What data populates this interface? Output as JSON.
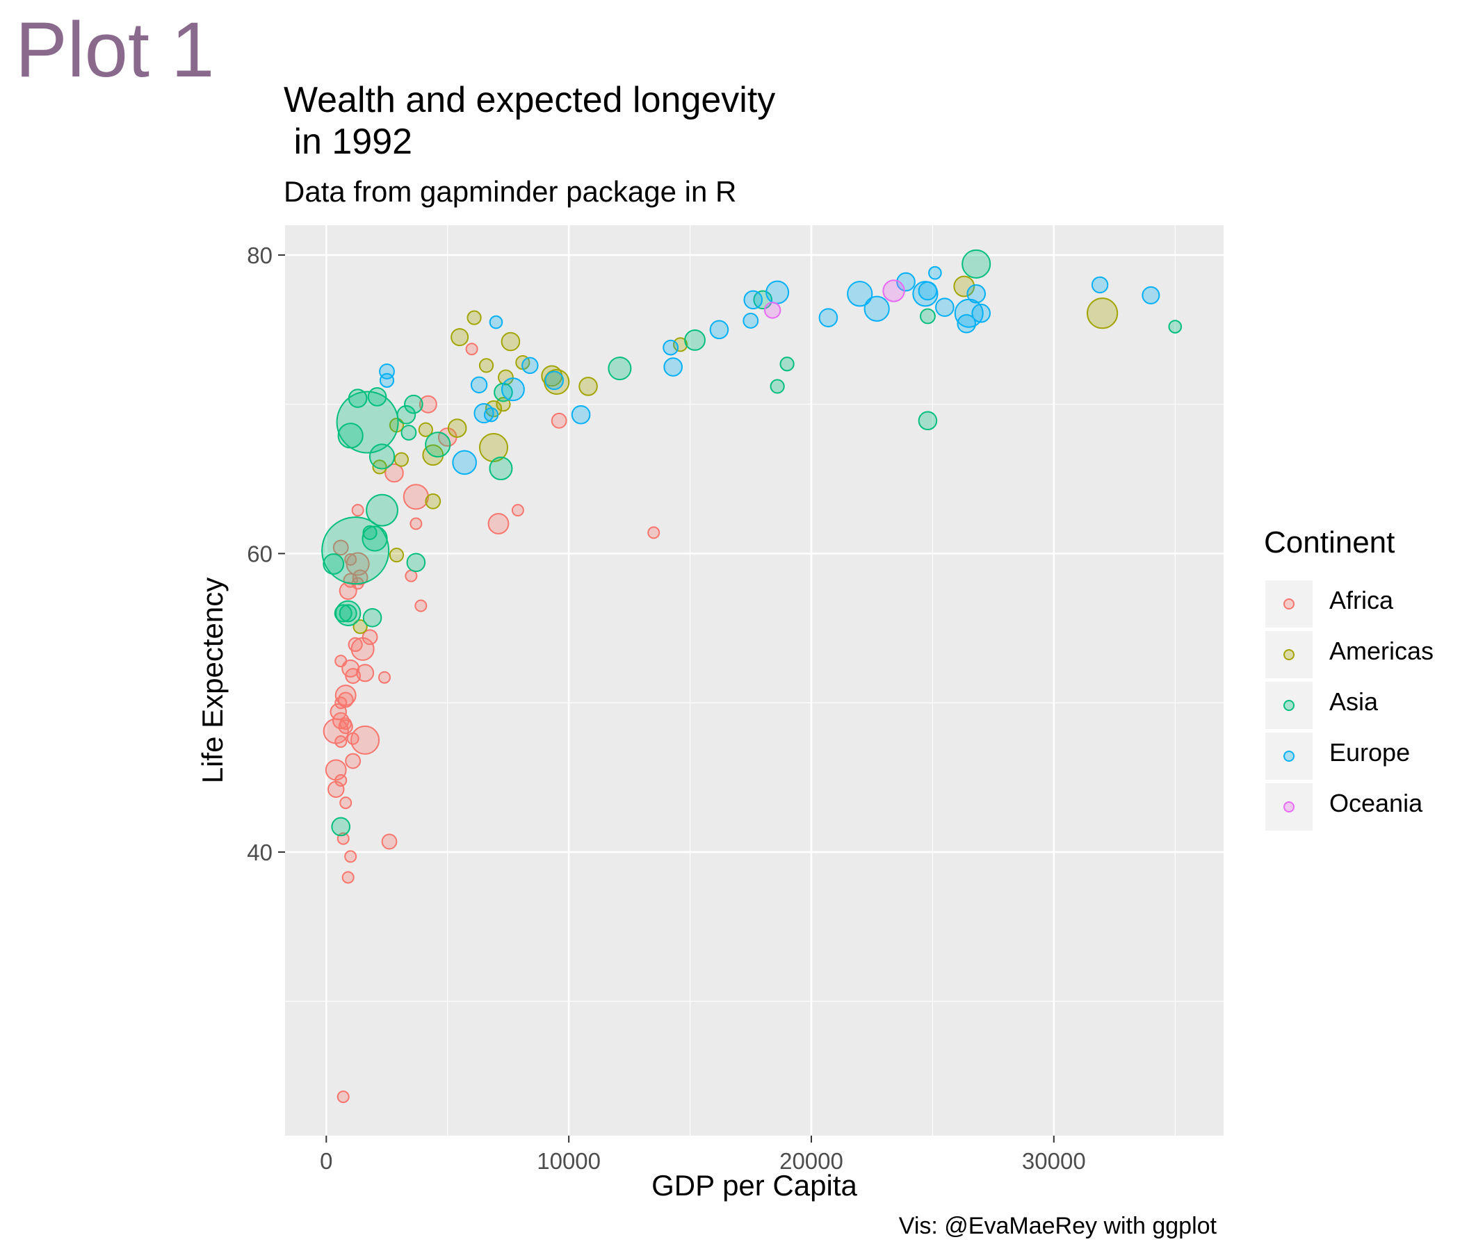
{
  "header": {
    "plot_label": "Plot 1"
  },
  "chart_data": {
    "type": "scatter",
    "title": "Wealth and expected longevity\n in 1992",
    "subtitle": "Data from gapminder package in R",
    "xlabel": "GDP per Capita",
    "ylabel": "Life Expectency",
    "caption": "Vis: @EvaMaeRey with ggplot",
    "xlim": [
      -1700,
      37000
    ],
    "ylim": [
      21,
      82
    ],
    "x_ticks": [
      0,
      10000,
      20000,
      30000
    ],
    "x_tick_labels": [
      "0",
      "10000",
      "20000",
      "30000"
    ],
    "y_ticks": [
      40,
      60,
      80
    ],
    "y_tick_labels": [
      "40",
      "60",
      "80"
    ],
    "grid": true,
    "legend": {
      "title": "Continent",
      "position": "right",
      "entries": [
        {
          "name": "Africa",
          "color": "#F8766D"
        },
        {
          "name": "Americas",
          "color": "#A3A500"
        },
        {
          "name": "Asia",
          "color": "#00BF7D"
        },
        {
          "name": "Europe",
          "color": "#00B0F6"
        },
        {
          "name": "Oceania",
          "color": "#E76BF3"
        }
      ]
    },
    "panel_background": "#EBEBEB",
    "point_fill_alpha": 0.3,
    "series": [
      {
        "name": "Africa",
        "points": [
          [
            700,
            23.6,
            1
          ],
          [
            900,
            38.3,
            1
          ],
          [
            1000,
            39.7,
            1
          ],
          [
            2600,
            40.7,
            1.3
          ],
          [
            700,
            40.9,
            1
          ],
          [
            800,
            43.3,
            1
          ],
          [
            400,
            44.2,
            1.4
          ],
          [
            600,
            44.8,
            1
          ],
          [
            400,
            45.5,
            1.8
          ],
          [
            1100,
            46.1,
            1.3
          ],
          [
            1600,
            47.5,
            2.5
          ],
          [
            1100,
            47.6,
            1
          ],
          [
            600,
            47.4,
            1
          ],
          [
            400,
            48.1,
            2.2
          ],
          [
            800,
            48.4,
            1.2
          ],
          [
            600,
            48.8,
            1.4
          ],
          [
            800,
            48.6,
            1
          ],
          [
            500,
            49.4,
            1.4
          ],
          [
            800,
            50.2,
            1.3
          ],
          [
            800,
            50.5,
            1.8
          ],
          [
            600,
            50.0,
            1
          ],
          [
            1100,
            51.8,
            1.3
          ],
          [
            1600,
            52.0,
            1.5
          ],
          [
            2400,
            51.7,
            1
          ],
          [
            1000,
            52.3,
            1.5
          ],
          [
            600,
            52.8,
            1
          ],
          [
            1500,
            53.6,
            2
          ],
          [
            1200,
            53.9,
            1.2
          ],
          [
            1800,
            54.4,
            1.3
          ],
          [
            3900,
            56.5,
            1
          ],
          [
            900,
            57.5,
            1.5
          ],
          [
            1300,
            58.0,
            1
          ],
          [
            1400,
            58.4,
            1.3
          ],
          [
            1000,
            58.2,
            1.2
          ],
          [
            3500,
            58.5,
            1
          ],
          [
            1300,
            59.3,
            2
          ],
          [
            1000,
            59.6,
            1
          ],
          [
            600,
            60.4,
            1.3
          ],
          [
            3700,
            62.0,
            1
          ],
          [
            7100,
            62.0,
            1.8
          ],
          [
            1300,
            62.9,
            1
          ],
          [
            7900,
            62.9,
            1
          ],
          [
            13500,
            61.4,
            1
          ],
          [
            3700,
            63.8,
            2.2
          ],
          [
            2800,
            65.4,
            1.6
          ],
          [
            5000,
            67.8,
            1.6
          ],
          [
            9600,
            68.9,
            1.3
          ],
          [
            4200,
            70.0,
            1.5
          ],
          [
            6000,
            73.7,
            1
          ]
        ]
      },
      {
        "name": "Americas",
        "points": [
          [
            1400,
            55.1,
            1.2
          ],
          [
            2900,
            59.9,
            1.2
          ],
          [
            2200,
            65.8,
            1.2
          ],
          [
            3100,
            66.3,
            1.2
          ],
          [
            4400,
            66.6,
            1.8
          ],
          [
            4400,
            63.5,
            1.3
          ],
          [
            2900,
            68.6,
            1.2
          ],
          [
            4100,
            68.3,
            1.2
          ],
          [
            5400,
            68.4,
            1.6
          ],
          [
            6900,
            67.1,
            2.5
          ],
          [
            6900,
            69.7,
            1.4
          ],
          [
            7300,
            70.0,
            1.2
          ],
          [
            6100,
            75.8,
            1.2
          ],
          [
            5500,
            74.5,
            1.5
          ],
          [
            7600,
            74.2,
            1.6
          ],
          [
            6600,
            72.6,
            1.2
          ],
          [
            8100,
            72.8,
            1.2
          ],
          [
            7400,
            71.8,
            1.3
          ],
          [
            9300,
            71.9,
            1.8
          ],
          [
            9500,
            71.5,
            2.2
          ],
          [
            10800,
            71.2,
            1.6
          ],
          [
            14600,
            74.0,
            1.2
          ],
          [
            26300,
            77.9,
            1.8
          ],
          [
            32000,
            76.1,
            2.7
          ]
        ]
      },
      {
        "name": "Asia",
        "points": [
          [
            1200,
            60.2,
            6
          ],
          [
            1700,
            68.8,
            5.5
          ],
          [
            900,
            56.0,
            2.2
          ],
          [
            700,
            56.0,
            1.5
          ],
          [
            900,
            56.0,
            1.5
          ],
          [
            1900,
            55.7,
            1.6
          ],
          [
            300,
            59.3,
            1.8
          ],
          [
            2000,
            61.0,
            2.2
          ],
          [
            1800,
            61.4,
            1.2
          ],
          [
            2300,
            62.9,
            2.8
          ],
          [
            3700,
            59.4,
            1.6
          ],
          [
            600,
            41.7,
            1.6
          ],
          [
            2300,
            66.5,
            2.2
          ],
          [
            1000,
            67.9,
            2.2
          ],
          [
            3300,
            69.3,
            1.6
          ],
          [
            3600,
            70.0,
            1.6
          ],
          [
            3400,
            68.1,
            1.3
          ],
          [
            1300,
            70.4,
            1.6
          ],
          [
            2100,
            70.5,
            1.6
          ],
          [
            4600,
            67.3,
            2.2
          ],
          [
            7200,
            65.7,
            2
          ],
          [
            7300,
            70.8,
            1.6
          ],
          [
            12100,
            72.4,
            2
          ],
          [
            15200,
            74.3,
            1.8
          ],
          [
            18000,
            77.0,
            1.6
          ],
          [
            18600,
            71.2,
            1.2
          ],
          [
            19000,
            72.7,
            1.2
          ],
          [
            24800,
            75.9,
            1.3
          ],
          [
            24800,
            68.9,
            1.6
          ],
          [
            26800,
            79.4,
            2.5
          ],
          [
            35000,
            75.2,
            1.1
          ]
        ]
      },
      {
        "name": "Europe",
        "points": [
          [
            2500,
            71.6,
            1.2
          ],
          [
            2500,
            72.2,
            1.3
          ],
          [
            6300,
            71.3,
            1.4
          ],
          [
            6500,
            69.4,
            1.7
          ],
          [
            6800,
            69.3,
            1.2
          ],
          [
            5700,
            66.1,
            2.1
          ],
          [
            7000,
            75.5,
            1.1
          ],
          [
            7700,
            71.0,
            2
          ],
          [
            8400,
            72.6,
            1.4
          ],
          [
            9400,
            71.6,
            1.6
          ],
          [
            10500,
            69.3,
            1.6
          ],
          [
            14300,
            72.5,
            1.6
          ],
          [
            14200,
            73.8,
            1.3
          ],
          [
            16200,
            75.0,
            1.6
          ],
          [
            17500,
            75.6,
            1.3
          ],
          [
            17600,
            77.0,
            1.6
          ],
          [
            18600,
            77.5,
            2
          ],
          [
            20700,
            75.8,
            1.6
          ],
          [
            22000,
            77.4,
            2.2
          ],
          [
            22700,
            76.4,
            2.2
          ],
          [
            23900,
            78.2,
            1.6
          ],
          [
            25100,
            78.8,
            1.1
          ],
          [
            24700,
            77.4,
            2.2
          ],
          [
            24800,
            77.6,
            1.6
          ],
          [
            25500,
            76.5,
            1.6
          ],
          [
            26400,
            75.4,
            1.6
          ],
          [
            26500,
            76.1,
            2.5
          ],
          [
            26800,
            77.4,
            1.6
          ],
          [
            27000,
            76.1,
            1.6
          ],
          [
            31900,
            78.0,
            1.4
          ],
          [
            34000,
            77.3,
            1.5
          ]
        ]
      },
      {
        "name": "Oceania",
        "points": [
          [
            18400,
            76.3,
            1.4
          ],
          [
            23400,
            77.6,
            1.9
          ]
        ]
      }
    ]
  }
}
